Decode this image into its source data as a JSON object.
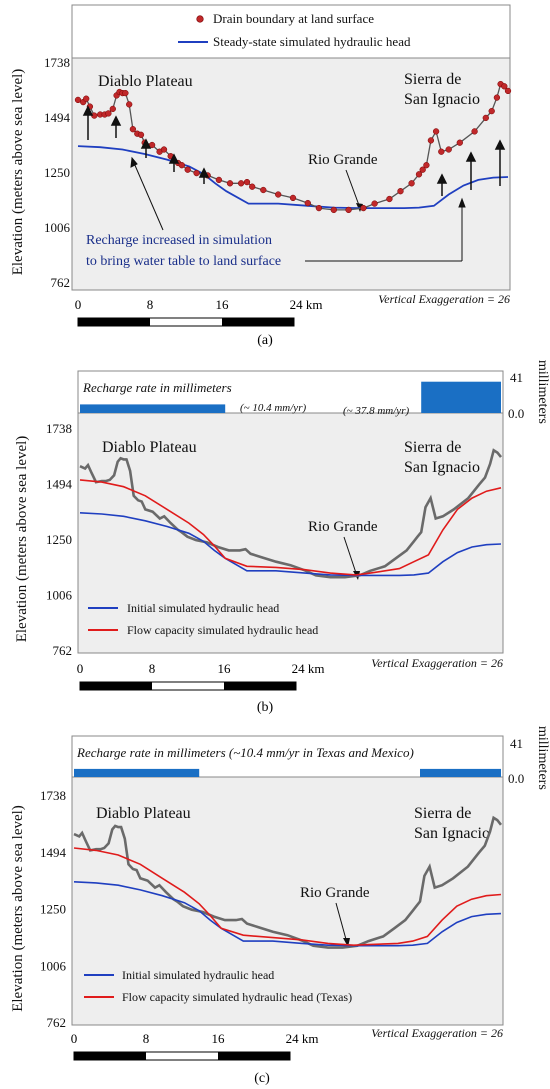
{
  "common": {
    "ylabel": "Elevation (meters above sea level)",
    "yticks": [
      1738,
      1494,
      1250,
      1006,
      762
    ],
    "xticks": [
      "0",
      "8",
      "16",
      "24 km"
    ],
    "vertical_exaggeration": "Vertical Exaggeration = 26",
    "place_labels": {
      "diablo": "Diablo Plateau",
      "sierra_line1": "Sierra de",
      "sierra_line2": "San Ignacio",
      "rio": "Rio Grande"
    },
    "colors": {
      "land": "#6a6a6a",
      "initial_head": "#1f3fc0",
      "flow_head": "#e01b1b",
      "drain": "#c0282a",
      "recharge_bar": "#1a6fc4",
      "plot_bg": "#eeeeee"
    }
  },
  "panel_a": {
    "label": "(a)",
    "legend": {
      "drain": "Drain boundary at land surface",
      "steady": "Steady-state simulated hydraulic head"
    },
    "annotation_line1": "Recharge increased in simulation",
    "annotation_line2": "to bring water table to land surface"
  },
  "panel_b": {
    "label": "(b)",
    "recharge_title": "Recharge rate in millimeters",
    "recharge_low": "(~ 10.4 mm/yr)",
    "recharge_high": "(~ 37.8 mm/yr)",
    "recharge_axis_label": "millimeters",
    "recharge_ticks": [
      "41",
      "0.0"
    ],
    "legend": {
      "initial": "Initial simulated hydraulic head",
      "flow": "Flow capacity simulated hydraulic head"
    }
  },
  "panel_c": {
    "label": "(c)",
    "recharge_title": "Recharge rate in millimeters (~10.4 mm/yr in Texas and Mexico)",
    "recharge_axis_label": "millimeters",
    "recharge_ticks": [
      "41",
      "0.0"
    ],
    "legend": {
      "initial": "Initial simulated hydraulic head",
      "flow": "Flow capacity simulated hydraulic head (Texas)"
    }
  },
  "chart_data": [
    {
      "type": "line",
      "panel": "a",
      "xlabel": "",
      "ylabel": "Elevation (meters above sea level)",
      "ylim": [
        762,
        1738
      ],
      "xlim": [
        0,
        58
      ],
      "series": [
        {
          "name": "Drain boundary at land surface",
          "x": [
            0,
            0.7,
            1.1,
            1.6,
            2.2,
            3.0,
            3.6,
            4.1,
            4.7,
            5.2,
            5.6,
            6.0,
            6.4,
            6.9,
            7.4,
            8.0,
            8.5,
            9.0,
            10.0,
            11.0,
            11.6,
            12.5,
            13.5,
            14.0,
            14.8,
            16.0,
            17.5,
            19.0,
            20.5,
            22.0,
            22.8,
            23.5,
            25.0,
            27.0,
            29.0,
            31.0,
            32.5,
            34.5,
            36.5,
            38.5,
            40.0,
            42.0,
            43.5,
            45.0,
            46.0,
            46.5,
            47.0,
            47.6,
            48.3,
            49.0,
            50.0,
            51.5,
            53.5,
            55.0,
            55.8,
            56.5,
            57.0,
            57.5,
            58.0
          ],
          "y": [
            1570,
            1560,
            1575,
            1540,
            1500,
            1505,
            1505,
            1510,
            1530,
            1590,
            1605,
            1600,
            1600,
            1550,
            1440,
            1420,
            1415,
            1380,
            1370,
            1340,
            1350,
            1320,
            1290,
            1280,
            1260,
            1245,
            1235,
            1215,
            1200,
            1200,
            1205,
            1185,
            1170,
            1150,
            1135,
            1112,
            1090,
            1082,
            1082,
            1090,
            1110,
            1130,
            1165,
            1200,
            1240,
            1260,
            1280,
            1390,
            1430,
            1340,
            1350,
            1380,
            1430,
            1490,
            1520,
            1580,
            1640,
            1630,
            1610
          ]
        },
        {
          "name": "Steady-state simulated hydraulic head",
          "x": [
            0,
            3,
            6,
            9,
            12,
            15,
            17,
            18.5,
            20,
            23,
            27,
            31,
            34.5,
            38,
            40,
            44,
            46,
            48,
            50,
            52,
            54,
            56,
            58
          ],
          "y": [
            1365,
            1360,
            1350,
            1330,
            1305,
            1275,
            1240,
            1200,
            1165,
            1110,
            1110,
            1100,
            1092,
            1090,
            1090,
            1090,
            1092,
            1100,
            1150,
            1190,
            1215,
            1225,
            1228
          ]
        }
      ]
    },
    {
      "type": "line",
      "panel": "b",
      "ylabel": "Elevation (meters above sea level)",
      "ylim": [
        762,
        1738
      ],
      "xlim": [
        0,
        58
      ],
      "series": [
        {
          "name": "Initial simulated hydraulic head",
          "x": [
            0,
            3,
            6,
            9,
            12,
            15,
            17,
            18.5,
            20,
            23,
            27,
            31,
            34.5,
            38,
            40,
            44,
            46,
            48,
            50,
            52,
            54,
            56,
            58
          ],
          "y": [
            1365,
            1360,
            1350,
            1330,
            1305,
            1275,
            1240,
            1200,
            1165,
            1110,
            1110,
            1100,
            1092,
            1090,
            1090,
            1090,
            1092,
            1100,
            1150,
            1190,
            1215,
            1225,
            1228
          ]
        },
        {
          "name": "Flow capacity simulated hydraulic head",
          "x": [
            0,
            3,
            6,
            9,
            12,
            15,
            17,
            18.5,
            20,
            23,
            27,
            31,
            34.5,
            38,
            40,
            44,
            46,
            48,
            50,
            52,
            54,
            56,
            58
          ],
          "y": [
            1510,
            1500,
            1480,
            1440,
            1380,
            1320,
            1270,
            1220,
            1165,
            1130,
            1125,
            1115,
            1100,
            1092,
            1100,
            1120,
            1150,
            1180,
            1290,
            1380,
            1430,
            1460,
            1475
          ]
        },
        {
          "name": "Recharge rate",
          "x": [
            0,
            20,
            47,
            58
          ],
          "y": [
            10.4,
            10.4,
            37.8,
            37.8
          ]
        }
      ]
    },
    {
      "type": "line",
      "panel": "c",
      "ylabel": "Elevation (meters above sea level)",
      "ylim": [
        762,
        1738
      ],
      "xlim": [
        0,
        58
      ],
      "series": [
        {
          "name": "Initial simulated hydraulic head",
          "x": [
            0,
            3,
            6,
            9,
            12,
            15,
            17,
            18.5,
            20,
            23,
            27,
            31,
            34.5,
            38,
            40,
            44,
            46,
            48,
            50,
            52,
            54,
            56,
            58
          ],
          "y": [
            1365,
            1360,
            1350,
            1330,
            1305,
            1275,
            1240,
            1200,
            1165,
            1110,
            1110,
            1100,
            1092,
            1090,
            1090,
            1090,
            1092,
            1100,
            1150,
            1190,
            1215,
            1225,
            1228
          ]
        },
        {
          "name": "Flow capacity simulated hydraulic head (Texas)",
          "x": [
            0,
            3,
            6,
            9,
            12,
            15,
            17,
            18.5,
            20,
            23,
            27,
            31,
            34.5,
            38,
            40,
            44,
            46,
            48,
            50,
            52,
            54,
            56,
            58
          ],
          "y": [
            1510,
            1500,
            1480,
            1440,
            1380,
            1320,
            1270,
            1220,
            1165,
            1135,
            1125,
            1115,
            1100,
            1092,
            1095,
            1100,
            1110,
            1130,
            1200,
            1260,
            1290,
            1305,
            1310
          ]
        },
        {
          "name": "Recharge rate",
          "x": [
            0,
            17,
            47,
            58
          ],
          "y": [
            10.4,
            10.4,
            10.4,
            10.4
          ]
        }
      ]
    }
  ]
}
